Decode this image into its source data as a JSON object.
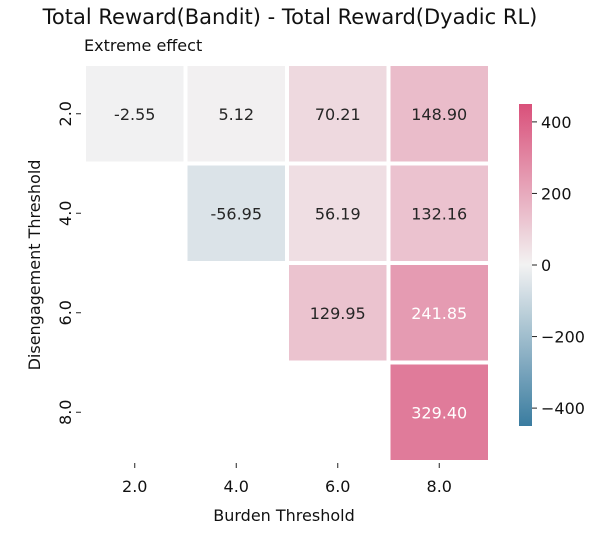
{
  "chart_data": {
    "type": "heatmap",
    "title": "Total Reward(Bandit) - Total Reward(Dyadic RL)",
    "subtitle": "Extreme effect",
    "xlabel": "Burden Threshold",
    "ylabel": "Disengagement Threshold",
    "x_categories": [
      "2.0",
      "4.0",
      "6.0",
      "8.0"
    ],
    "y_categories": [
      "2.0",
      "4.0",
      "6.0",
      "8.0"
    ],
    "values": [
      [
        -2.55,
        5.12,
        70.21,
        148.9
      ],
      [
        null,
        -56.95,
        56.19,
        132.16
      ],
      [
        null,
        null,
        129.95,
        241.85
      ],
      [
        null,
        null,
        null,
        329.4
      ]
    ],
    "value_labels": [
      [
        "-2.55",
        "5.12",
        "70.21",
        "148.90"
      ],
      [
        null,
        "-56.95",
        "56.19",
        "132.16"
      ],
      [
        null,
        null,
        "129.95",
        "241.85"
      ],
      [
        null,
        null,
        null,
        "329.40"
      ]
    ],
    "colorbar": {
      "range": [
        -450,
        450
      ],
      "ticks": [
        400,
        200,
        0,
        -200,
        -400
      ],
      "tick_labels": [
        "400",
        "200",
        "0",
        "−200",
        "−400"
      ],
      "colors": {
        "negative": "#3a7ca0",
        "center": "#f2f2f2",
        "positive": "#d9507a"
      }
    },
    "grid": false,
    "legend": "right colorbar"
  }
}
